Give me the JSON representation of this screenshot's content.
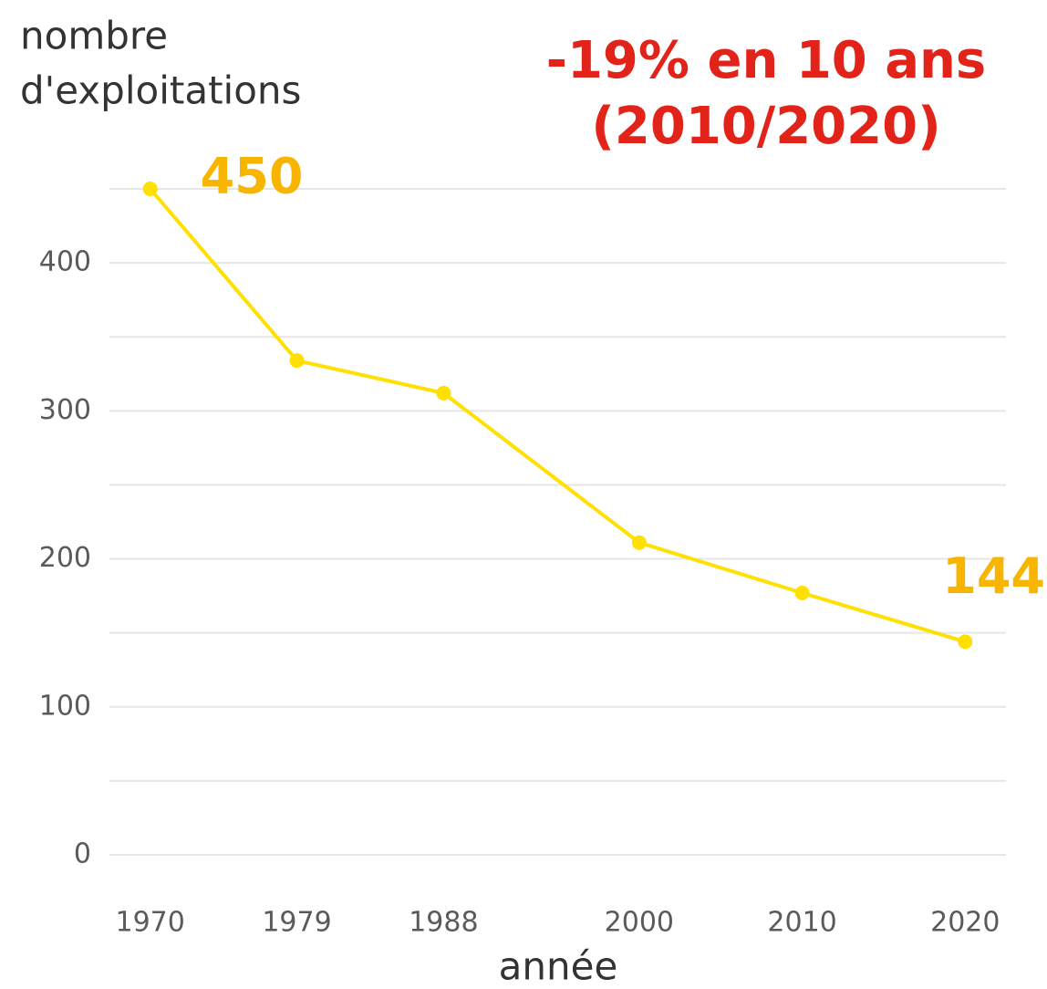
{
  "chart_data": {
    "type": "line",
    "ylabel": [
      "nombre",
      "d'exploitations"
    ],
    "xlabel": "année",
    "annotation": [
      "-19% en 10 ans",
      "(2010/2020)"
    ],
    "x": [
      1970,
      1979,
      1988,
      2000,
      2010,
      2020
    ],
    "series": [
      {
        "name": "exploitations",
        "color": "#ffe000",
        "values": [
          450,
          334,
          312,
          211,
          177,
          144
        ],
        "value_labels": [
          "450",
          null,
          null,
          null,
          null,
          "144"
        ],
        "label_color": "#f7b500"
      }
    ],
    "xlim": [
      1967.5,
      2022.5
    ],
    "xticks": [
      1970,
      1979,
      1988,
      2000,
      2010,
      2020
    ],
    "ylim": [
      0,
      450
    ],
    "yticks": [
      0,
      100,
      200,
      300,
      400
    ],
    "minor_yticks": [
      50,
      150,
      250,
      350,
      450
    ],
    "grid": true,
    "grid_color": "#e6e6e6"
  }
}
